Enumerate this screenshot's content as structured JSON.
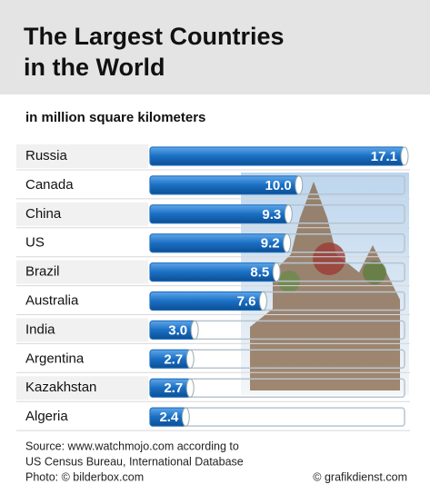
{
  "chart_data": {
    "type": "bar",
    "title": [
      "The Largest Countries",
      "in the World"
    ],
    "subtitle": "in million square kilometers",
    "categories": [
      "Russia",
      "Canada",
      "China",
      "US",
      "Brazil",
      "Australia",
      "India",
      "Argentina",
      "Kazakhstan",
      "Algeria"
    ],
    "values": [
      17.1,
      10.0,
      9.3,
      9.2,
      8.5,
      7.6,
      3.0,
      2.7,
      2.7,
      2.4
    ],
    "value_labels": [
      "17.1",
      "10.0",
      "9.3",
      "9.2",
      "8.5",
      "7.6",
      "3.0",
      "2.7",
      "2.7",
      "2.4"
    ],
    "color": "#1a6fc4",
    "source": [
      "Source: www.watchmojo.com according to",
      "US Census Bureau, International Database",
      "Photo: © bilderbox.com"
    ],
    "credit": "© grafikdienst.com"
  }
}
